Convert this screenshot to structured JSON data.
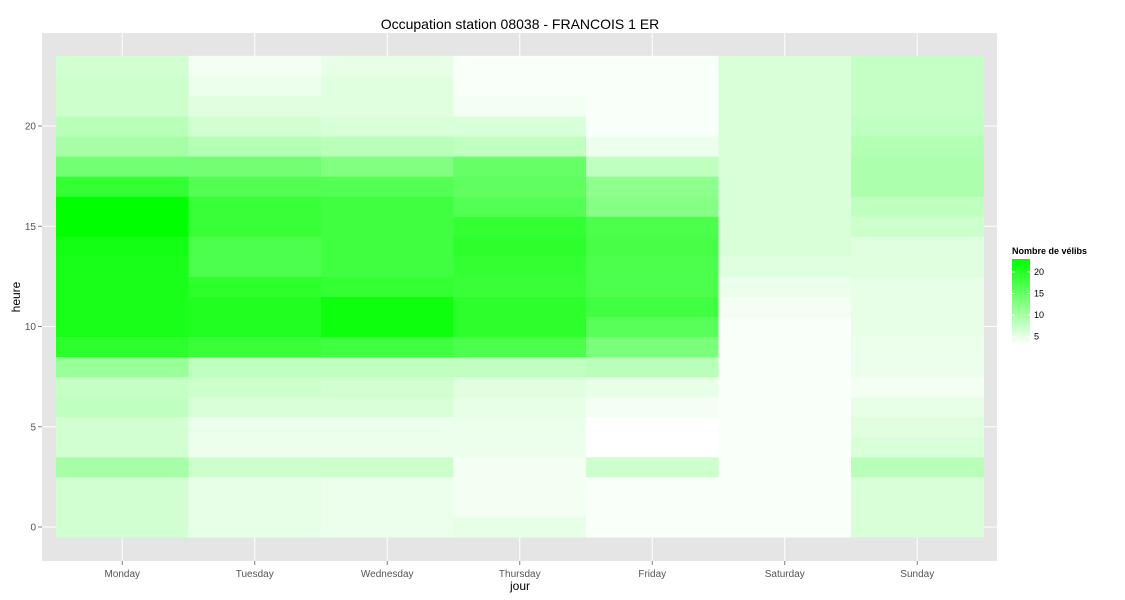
{
  "chart_data": {
    "type": "heatmap",
    "title": "Occupation station 08038 - FRANCOIS 1 ER",
    "xlabel": "jour",
    "ylabel": "heure",
    "x_categories": [
      "Monday",
      "Tuesday",
      "Wednesday",
      "Thursday",
      "Friday",
      "Saturday",
      "Sunday"
    ],
    "y_range": [
      0,
      23
    ],
    "y_ticks": [
      0,
      5,
      10,
      15,
      20
    ],
    "color_low": "#ffffff",
    "color_high": "#00ff00",
    "background": "#e5e5e5",
    "grid": true,
    "legend": {
      "title": "Nombre de vélibs",
      "position": "right",
      "values": [
        5,
        10,
        15,
        20
      ]
    },
    "color_range": [
      3,
      23
    ],
    "values": {
      "Monday": [
        6.5,
        6.5,
        6.5,
        10,
        6.5,
        6.5,
        8,
        7.5,
        11,
        19.5,
        21,
        21,
        21,
        21,
        21.5,
        23,
        23,
        19,
        14,
        10,
        8.5,
        7,
        7,
        6.5
      ],
      "Tuesday": [
        5,
        5,
        5,
        7,
        4.5,
        4.5,
        6,
        7,
        8,
        18.5,
        20.5,
        20.5,
        19.5,
        17,
        17,
        18.5,
        18.5,
        16.5,
        14,
        9,
        6.5,
        5.5,
        4.5,
        4
      ],
      "Wednesday": [
        4.5,
        4.5,
        4.5,
        7,
        4.5,
        4.5,
        6,
        6.5,
        8,
        18,
        22,
        22,
        19,
        18,
        18,
        18,
        18,
        16.5,
        13,
        8.5,
        6,
        5.5,
        5.5,
        5
      ],
      "Thursday": [
        5,
        4,
        4,
        4,
        4.5,
        4.5,
        5,
        5.5,
        8,
        17,
        19.5,
        19.5,
        18.5,
        19,
        19.5,
        19,
        16.5,
        15.5,
        15,
        8,
        6,
        4,
        3.5,
        3.5
      ],
      "Friday": [
        3.5,
        3.5,
        3.5,
        7,
        3,
        3,
        4,
        5,
        8.5,
        13.5,
        16,
        18,
        17,
        17,
        17.5,
        17,
        12.5,
        12,
        8,
        4.5,
        3.5,
        3.5,
        3.5,
        3.5
      ],
      "Saturday": [
        3.5,
        3.5,
        3.5,
        3.5,
        3.5,
        3.5,
        3.5,
        3.5,
        3.5,
        3.5,
        3.5,
        4,
        4.5,
        5.5,
        6,
        6,
        6,
        6,
        6,
        6,
        6,
        6,
        6,
        6
      ],
      "Sunday": [
        6,
        6,
        6,
        8.5,
        6,
        5.5,
        5,
        4,
        4.5,
        4.5,
        5,
        5,
        5,
        5.5,
        5.5,
        7,
        8,
        9.5,
        9.5,
        9,
        8,
        7.5,
        7.5,
        7.5
      ]
    }
  }
}
